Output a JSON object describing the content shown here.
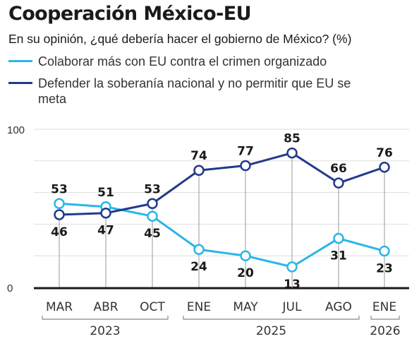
{
  "title": "Cooperación México-EU",
  "subtitle": "En su opinión, ¿qué debería hacer el gobierno de México? (%)",
  "colors": {
    "series1": "#29b6e8",
    "series2": "#233a8b",
    "axis": "#1a1a1a",
    "grid": "#dddddd"
  },
  "chart_data": {
    "type": "line",
    "title": "Cooperación México-EU",
    "subtitle": "En su opinión, ¿qué debería hacer el gobierno de México? (%)",
    "x": [
      "MAR",
      "ABR",
      "OCT",
      "ENE",
      "MAY",
      "JUL",
      "AGO",
      "ENE"
    ],
    "year_groups": [
      {
        "label": "2023",
        "from": 0,
        "to": 2
      },
      {
        "label": "2025",
        "from": 3,
        "to": 6
      },
      {
        "label": "2026",
        "from": 7,
        "to": 7
      }
    ],
    "series": [
      {
        "name": "Colaborar más con EU contra el crimen organizado",
        "color": "#29b6e8",
        "values": [
          53,
          51,
          45,
          24,
          20,
          13,
          31,
          23
        ]
      },
      {
        "name": "Defender la soberanía nacional y no permitir que EU se meta",
        "color": "#233a8b",
        "values": [
          46,
          47,
          53,
          74,
          77,
          85,
          66,
          76
        ]
      }
    ],
    "ylim": [
      0,
      100
    ],
    "yticks": [
      0,
      100
    ],
    "grid": true,
    "legend": "top-left",
    "data_labels": true
  }
}
